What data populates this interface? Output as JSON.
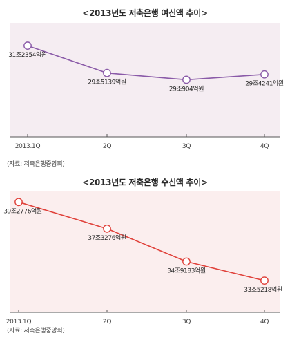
{
  "chart_data": [
    {
      "type": "line",
      "title": "<2013년도 저축은행 여신액 추이>",
      "categories": [
        "2013.1Q",
        "2Q",
        "3Q",
        "4Q"
      ],
      "values": [
        31.2354,
        29.5139,
        29.0904,
        29.4241
      ],
      "value_labels": [
        "31조2354억원",
        "29조5139억원",
        "29조904억원",
        "29조4241억원"
      ],
      "ylim": [
        25.5,
        32.5
      ],
      "source": "(자료: 저축은행중앙회)",
      "plot_background": "#f5edf2",
      "line_color": "#8a5aa8",
      "marker_fill": "#ffffff",
      "grid": false
    },
    {
      "type": "line",
      "title": "<2013년도 저축은행 수신액 추이>",
      "categories": [
        "2013.1Q",
        "2Q",
        "3Q",
        "4Q"
      ],
      "values": [
        39.2776,
        37.3276,
        34.9183,
        33.5218
      ],
      "value_labels": [
        "39조2776억원",
        "37조3276억원",
        "34조9183억원",
        "33조5218억원"
      ],
      "ylim": [
        31.2,
        39.9
      ],
      "source": "(자료: 저축은행중앙회)",
      "plot_background": "#fbeeee",
      "line_color": "#e0413a",
      "marker_fill": "#ffffff",
      "grid": false
    }
  ]
}
